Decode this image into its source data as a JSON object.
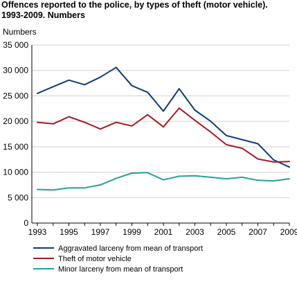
{
  "title_line1": "Offences reported to the police, by types of theft (motor vehicle).",
  "title_line2": "1993-2009. Numbers",
  "chart_data": {
    "type": "line",
    "ylabel": "Numbers",
    "xlabel": "",
    "ylim": [
      0,
      35000
    ],
    "yticks": [
      0,
      5000,
      10000,
      15000,
      20000,
      25000,
      30000,
      35000
    ],
    "ytick_labels": [
      "0",
      "5 000",
      "10 000",
      "15 000",
      "20 000",
      "25 000",
      "30 000",
      "35 000"
    ],
    "xticks": [
      1993,
      1995,
      1997,
      1999,
      2001,
      2003,
      2005,
      2007,
      2009
    ],
    "xtick_labels": [
      "1993",
      "1995",
      "1997",
      "1999",
      "2001",
      "2003",
      "2005",
      "2007",
      "2009"
    ],
    "grid": "horizontal",
    "legend_placement": "bottom",
    "x": [
      1993,
      1994,
      1995,
      1996,
      1997,
      1998,
      1999,
      2000,
      2001,
      2002,
      2003,
      2004,
      2005,
      2006,
      2007,
      2008,
      2009
    ],
    "series": [
      {
        "name": "Aggravated larceny from mean of transport",
        "color": "#0e3a7d",
        "values": [
          25500,
          26800,
          28100,
          27200,
          28700,
          30600,
          27000,
          25700,
          22000,
          26400,
          22200,
          20000,
          17200,
          16400,
          15600,
          12400,
          11000
        ]
      },
      {
        "name": "Theft of motor vehicle",
        "color": "#a31a25",
        "values": [
          19800,
          19500,
          20900,
          19800,
          18500,
          19800,
          19100,
          21300,
          18900,
          22600,
          20200,
          17900,
          15400,
          14700,
          12600,
          12000,
          12100
        ]
      },
      {
        "name": "Minor larceny from mean of transport",
        "color": "#24a19c",
        "values": [
          6600,
          6500,
          6900,
          6900,
          7500,
          8800,
          9800,
          9900,
          8500,
          9200,
          9300,
          9000,
          8700,
          9000,
          8400,
          8300,
          8700
        ]
      }
    ]
  }
}
